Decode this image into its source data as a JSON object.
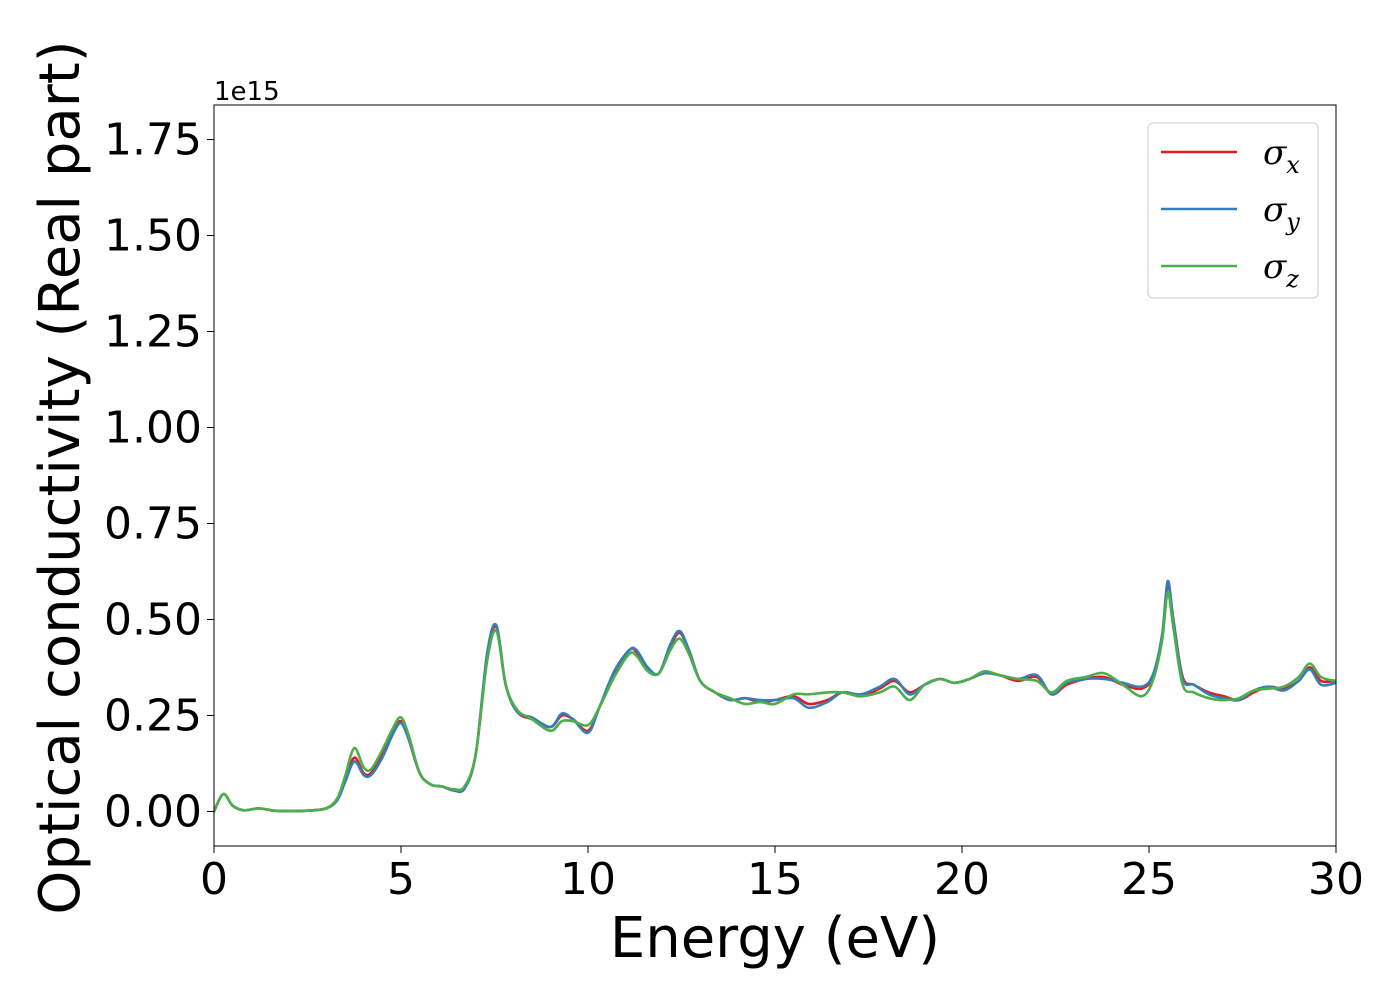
{
  "chart_data": {
    "type": "line",
    "xlabel": "Energy (eV)",
    "ylabel": "Optical conductivity (Real part)",
    "y_offset_text": "1e15",
    "y_scale_factor": 1000000000000000.0,
    "xlim": [
      0,
      30
    ],
    "ylim": [
      -0.09,
      1.84
    ],
    "x_ticks": [
      0,
      5,
      10,
      15,
      20,
      25,
      30
    ],
    "x_tick_labels": [
      "0",
      "5",
      "10",
      "15",
      "20",
      "25",
      "30"
    ],
    "y_ticks": [
      0.0,
      0.25,
      0.5,
      0.75,
      1.0,
      1.25,
      1.5,
      1.75
    ],
    "y_tick_labels": [
      "0.00",
      "0.25",
      "0.50",
      "0.75",
      "1.00",
      "1.25",
      "1.50",
      "1.75"
    ],
    "grid": false,
    "legend_position": "top-right",
    "series": [
      {
        "name": "σx",
        "symbol": "σ",
        "subscript": "x",
        "color": "#e41a1c",
        "x": [
          0,
          0.25,
          0.5,
          0.8,
          1.2,
          1.6,
          2.0,
          2.5,
          3.0,
          3.3,
          3.5,
          3.75,
          4.0,
          4.2,
          4.5,
          4.8,
          5.0,
          5.2,
          5.5,
          5.8,
          6.1,
          6.4,
          6.7,
          7.0,
          7.3,
          7.55,
          7.8,
          8.1,
          8.5,
          9.0,
          9.3,
          9.6,
          10.0,
          10.3,
          10.7,
          11.1,
          11.3,
          11.6,
          11.9,
          12.2,
          12.45,
          12.7,
          13.0,
          13.4,
          13.8,
          14.2,
          14.6,
          15.0,
          15.5,
          15.9,
          16.4,
          16.8,
          17.3,
          17.8,
          18.2,
          18.6,
          19.0,
          19.4,
          19.8,
          20.2,
          20.6,
          21.0,
          21.5,
          22.0,
          22.4,
          22.8,
          23.3,
          23.8,
          24.3,
          24.8,
          25.1,
          25.35,
          25.5,
          25.65,
          25.9,
          26.2,
          26.6,
          27.0,
          27.4,
          27.8,
          28.2,
          28.6,
          29.0,
          29.3,
          29.6,
          30.0
        ],
        "values": [
          0.0,
          0.045,
          0.015,
          0.003,
          0.008,
          0.002,
          0.001,
          0.002,
          0.008,
          0.03,
          0.08,
          0.14,
          0.1,
          0.1,
          0.15,
          0.21,
          0.235,
          0.19,
          0.1,
          0.07,
          0.065,
          0.055,
          0.06,
          0.15,
          0.4,
          0.48,
          0.33,
          0.26,
          0.24,
          0.22,
          0.25,
          0.24,
          0.21,
          0.27,
          0.36,
          0.42,
          0.415,
          0.37,
          0.36,
          0.43,
          0.465,
          0.42,
          0.34,
          0.31,
          0.29,
          0.295,
          0.285,
          0.29,
          0.3,
          0.28,
          0.29,
          0.31,
          0.3,
          0.32,
          0.34,
          0.31,
          0.33,
          0.345,
          0.335,
          0.345,
          0.36,
          0.355,
          0.34,
          0.35,
          0.305,
          0.33,
          0.345,
          0.35,
          0.33,
          0.32,
          0.35,
          0.45,
          0.59,
          0.5,
          0.35,
          0.33,
          0.31,
          0.3,
          0.29,
          0.31,
          0.325,
          0.32,
          0.34,
          0.375,
          0.34,
          0.34
        ]
      },
      {
        "name": "σy",
        "symbol": "σ",
        "subscript": "y",
        "color": "#377eb8",
        "x": [
          0,
          0.25,
          0.5,
          0.8,
          1.2,
          1.6,
          2.0,
          2.5,
          3.0,
          3.3,
          3.5,
          3.75,
          4.0,
          4.2,
          4.5,
          4.8,
          5.0,
          5.2,
          5.5,
          5.8,
          6.1,
          6.4,
          6.7,
          7.0,
          7.3,
          7.55,
          7.8,
          8.1,
          8.5,
          9.0,
          9.3,
          9.6,
          10.0,
          10.3,
          10.7,
          11.1,
          11.3,
          11.6,
          11.9,
          12.2,
          12.45,
          12.7,
          13.0,
          13.4,
          13.8,
          14.2,
          14.6,
          15.0,
          15.5,
          15.9,
          16.4,
          16.8,
          17.3,
          17.8,
          18.2,
          18.6,
          19.0,
          19.4,
          19.8,
          20.2,
          20.6,
          21.0,
          21.5,
          22.0,
          22.4,
          22.8,
          23.3,
          23.8,
          24.3,
          24.8,
          25.1,
          25.35,
          25.5,
          25.65,
          25.9,
          26.2,
          26.6,
          27.0,
          27.4,
          27.8,
          28.2,
          28.6,
          29.0,
          29.3,
          29.6,
          30.0
        ],
        "values": [
          0.0,
          0.045,
          0.015,
          0.003,
          0.008,
          0.002,
          0.001,
          0.002,
          0.008,
          0.03,
          0.075,
          0.13,
          0.095,
          0.095,
          0.14,
          0.205,
          0.23,
          0.19,
          0.1,
          0.07,
          0.065,
          0.055,
          0.06,
          0.15,
          0.41,
          0.485,
          0.33,
          0.26,
          0.245,
          0.22,
          0.255,
          0.24,
          0.205,
          0.27,
          0.365,
          0.42,
          0.42,
          0.375,
          0.36,
          0.435,
          0.47,
          0.42,
          0.34,
          0.31,
          0.29,
          0.295,
          0.29,
          0.29,
          0.295,
          0.27,
          0.285,
          0.31,
          0.305,
          0.325,
          0.345,
          0.305,
          0.33,
          0.345,
          0.335,
          0.345,
          0.36,
          0.355,
          0.345,
          0.355,
          0.305,
          0.335,
          0.345,
          0.345,
          0.335,
          0.325,
          0.355,
          0.46,
          0.6,
          0.5,
          0.345,
          0.33,
          0.305,
          0.295,
          0.29,
          0.315,
          0.325,
          0.315,
          0.34,
          0.37,
          0.33,
          0.335
        ]
      },
      {
        "name": "σz",
        "symbol": "σ",
        "subscript": "z",
        "color": "#4daf4a",
        "x": [
          0,
          0.25,
          0.5,
          0.8,
          1.2,
          1.6,
          2.0,
          2.5,
          3.0,
          3.3,
          3.5,
          3.75,
          4.0,
          4.2,
          4.5,
          4.8,
          5.0,
          5.2,
          5.5,
          5.8,
          6.1,
          6.4,
          6.7,
          7.0,
          7.3,
          7.55,
          7.8,
          8.1,
          8.5,
          9.0,
          9.3,
          9.6,
          10.0,
          10.3,
          10.7,
          11.1,
          11.3,
          11.6,
          11.9,
          12.2,
          12.45,
          12.7,
          13.0,
          13.4,
          13.8,
          14.2,
          14.6,
          15.0,
          15.5,
          15.9,
          16.4,
          16.8,
          17.3,
          17.8,
          18.2,
          18.6,
          19.0,
          19.4,
          19.8,
          20.2,
          20.6,
          21.0,
          21.5,
          22.0,
          22.4,
          22.8,
          23.3,
          23.8,
          24.3,
          24.8,
          25.1,
          25.35,
          25.5,
          25.65,
          25.9,
          26.2,
          26.6,
          27.0,
          27.4,
          27.8,
          28.2,
          28.6,
          29.0,
          29.3,
          29.6,
          30.0
        ],
        "values": [
          0.0,
          0.045,
          0.015,
          0.003,
          0.008,
          0.002,
          0.001,
          0.002,
          0.008,
          0.035,
          0.09,
          0.165,
          0.115,
          0.11,
          0.16,
          0.22,
          0.245,
          0.2,
          0.1,
          0.07,
          0.065,
          0.058,
          0.065,
          0.15,
          0.39,
          0.47,
          0.33,
          0.265,
          0.24,
          0.21,
          0.235,
          0.235,
          0.225,
          0.27,
          0.35,
          0.41,
          0.405,
          0.365,
          0.36,
          0.42,
          0.45,
          0.41,
          0.34,
          0.31,
          0.295,
          0.28,
          0.285,
          0.28,
          0.305,
          0.305,
          0.31,
          0.31,
          0.3,
          0.31,
          0.325,
          0.29,
          0.33,
          0.345,
          0.335,
          0.345,
          0.365,
          0.355,
          0.345,
          0.34,
          0.31,
          0.34,
          0.35,
          0.36,
          0.33,
          0.3,
          0.34,
          0.445,
          0.57,
          0.48,
          0.33,
          0.31,
          0.295,
          0.29,
          0.295,
          0.315,
          0.32,
          0.325,
          0.35,
          0.385,
          0.35,
          0.34
        ]
      }
    ]
  }
}
